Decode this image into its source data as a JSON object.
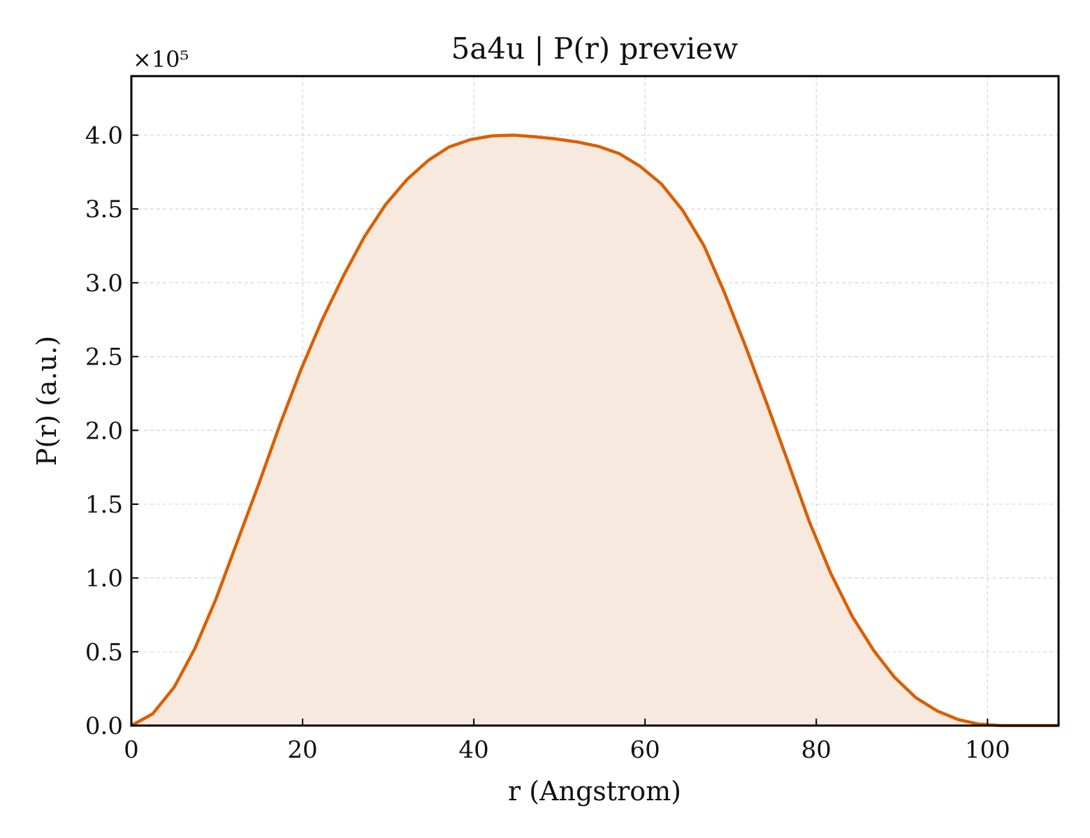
{
  "chart_data": {
    "type": "area",
    "title": "5a4u | P(r) preview",
    "xlabel": "r (Angstrom)",
    "ylabel": "P(r) (a.u.)",
    "y_offset_label": "×10⁵",
    "xlim": [
      0,
      108.3
    ],
    "ylim": [
      0,
      4.4
    ],
    "xticks": [
      0,
      20,
      40,
      60,
      80,
      100
    ],
    "xtick_labels": [
      "0",
      "20",
      "40",
      "60",
      "80",
      "100"
    ],
    "yticks": [
      0,
      0.5,
      1.0,
      1.5,
      2.0,
      2.5,
      3.0,
      3.5,
      4.0
    ],
    "ytick_labels": [
      "0.0",
      "0.5",
      "1.0",
      "1.5",
      "2.0",
      "2.5",
      "3.0",
      "3.5",
      "4.0"
    ],
    "grid": true,
    "line_color": "#d95f02",
    "fill_color": "#f8e9de",
    "series": [
      {
        "x": [
          0,
          2.5,
          5.0,
          7.4,
          9.9,
          12.4,
          14.9,
          17.3,
          19.8,
          22.3,
          24.8,
          27.2,
          29.7,
          32.2,
          34.7,
          37.1,
          39.6,
          42.1,
          44.6,
          47.0,
          49.5,
          52.0,
          54.5,
          57.0,
          59.4,
          61.9,
          64.4,
          66.9,
          69.3,
          71.8,
          74.3,
          76.8,
          79.2,
          81.7,
          84.2,
          86.7,
          89.1,
          91.6,
          94.1,
          96.6,
          99.0,
          101.5,
          104.0,
          106.5,
          108.3
        ],
        "values": [
          0.0,
          0.08,
          0.26,
          0.52,
          0.86,
          1.25,
          1.64,
          2.03,
          2.41,
          2.75,
          3.05,
          3.31,
          3.53,
          3.7,
          3.83,
          3.92,
          3.97,
          3.995,
          4.0,
          3.99,
          3.975,
          3.955,
          3.925,
          3.875,
          3.79,
          3.67,
          3.49,
          3.25,
          2.93,
          2.56,
          2.17,
          1.77,
          1.38,
          1.03,
          0.74,
          0.51,
          0.33,
          0.19,
          0.1,
          0.04,
          0.01,
          0.0,
          0.0,
          0.0,
          0.0
        ]
      }
    ]
  }
}
